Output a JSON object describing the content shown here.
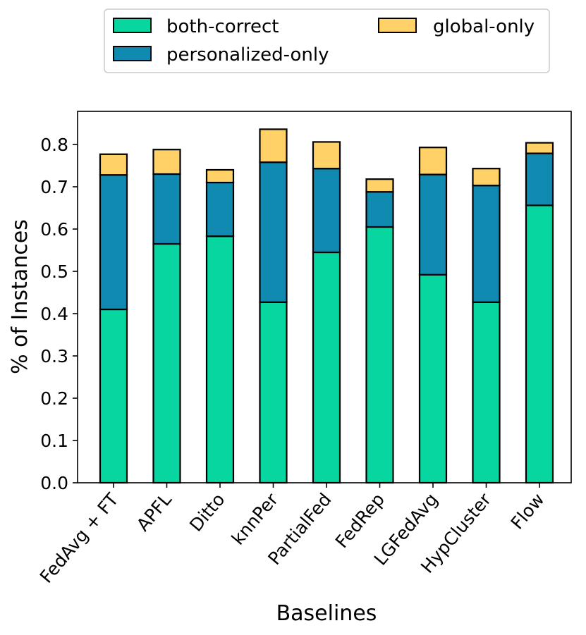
{
  "chart_data": {
    "type": "bar",
    "stacked": true,
    "title": "",
    "xlabel": "Baselines",
    "ylabel": "% of Instances",
    "ylim": [
      0.0,
      0.88
    ],
    "yticks": [
      "0.0",
      "0.1",
      "0.2",
      "0.3",
      "0.4",
      "0.5",
      "0.6",
      "0.7",
      "0.8"
    ],
    "ytick_values": [
      0.0,
      0.1,
      0.2,
      0.3,
      0.4,
      0.5,
      0.6,
      0.7,
      0.8
    ],
    "categories": [
      "FedAvg + FT",
      "APFL",
      "Ditto",
      "knnPer",
      "PartialFed",
      "FedRep",
      "LGFedAvg",
      "HypCluster",
      "Flow"
    ],
    "series": [
      {
        "name": "both-correct",
        "color": "#08d6a0",
        "values": [
          0.41,
          0.565,
          0.583,
          0.427,
          0.545,
          0.605,
          0.492,
          0.427,
          0.656
        ]
      },
      {
        "name": "personalized-only",
        "color": "#118ab2",
        "values": [
          0.318,
          0.165,
          0.127,
          0.331,
          0.198,
          0.083,
          0.237,
          0.276,
          0.123
        ]
      },
      {
        "name": "global-only",
        "color": "#ffd166",
        "values": [
          0.049,
          0.058,
          0.03,
          0.078,
          0.063,
          0.03,
          0.064,
          0.04,
          0.025
        ]
      }
    ],
    "legend": {
      "placement": "top-center",
      "columns": 2,
      "entries": [
        "both-correct",
        "personalized-only",
        "global-only"
      ]
    },
    "grid": false
  }
}
